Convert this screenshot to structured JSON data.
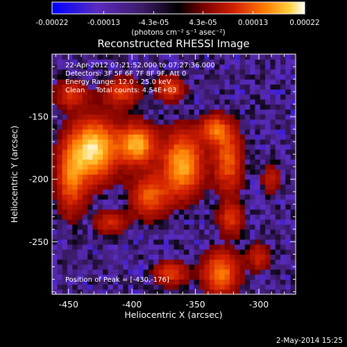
{
  "colorbar": {
    "tick_labels": [
      "-0.00022",
      "-0.00013",
      "-4.3e-05",
      "4.3e-05",
      "0.00013",
      "0.00022"
    ],
    "tick_values": [
      -0.00022,
      -0.00013,
      -4.3e-05,
      4.3e-05,
      0.00013,
      0.00022
    ],
    "range": [
      -0.00022,
      0.00022
    ],
    "units_label": "(photons cm⁻² s⁻¹ asec⁻²)",
    "colormap": [
      "#0000ff",
      "#5a2cc0",
      "#3b1a66",
      "#000000",
      "#7a0000",
      "#d22000",
      "#ff7a00",
      "#ffd040",
      "#ffffff"
    ]
  },
  "image": {
    "title": "Reconstructed RHESSI Image",
    "info_lines": [
      "22-Apr-2012 07:21:52.000 to 07:27:36.000",
      "Detectors: 3F 5F 6F 7F 8F 9F, Att 0",
      "Energy Range: 12.0 - 25.0 keV",
      "Clean     Total counts: 4.54E+03"
    ],
    "peak_text": "Position of Peak = [-430,-176]"
  },
  "chart_data": {
    "type": "heatmap",
    "title": "Reconstructed RHESSI Image",
    "xlabel": "Heliocentric X (arcsec)",
    "ylabel": "Heliocentric Y (arcsec)",
    "xlim": [
      -463,
      -271
    ],
    "ylim": [
      -292,
      -100
    ],
    "x_ticks": [
      -450,
      -400,
      -350,
      -300
    ],
    "x_tick_labels": [
      "-450",
      "-400",
      "-350",
      "-300"
    ],
    "y_ticks": [
      -150,
      -200,
      -250
    ],
    "y_tick_labels": [
      "-150",
      "-200",
      "-250"
    ],
    "grid": false,
    "peak": [
      -430,
      -176
    ],
    "emission_sources": [
      {
        "x": -430,
        "y": -176,
        "sx": 13,
        "sy": 17,
        "amp": 1.0
      },
      {
        "x": -448,
        "y": -200,
        "sx": 8,
        "sy": 20,
        "amp": 0.6
      },
      {
        "x": -396,
        "y": -172,
        "sx": 10,
        "sy": 11,
        "amp": 0.85
      },
      {
        "x": -386,
        "y": -213,
        "sx": 10,
        "sy": 12,
        "amp": 0.6
      },
      {
        "x": -360,
        "y": -188,
        "sx": 11,
        "sy": 18,
        "amp": 0.85
      },
      {
        "x": -335,
        "y": -160,
        "sx": 8,
        "sy": 8,
        "amp": 0.6
      },
      {
        "x": -324,
        "y": -185,
        "sx": 8,
        "sy": 18,
        "amp": 0.6
      },
      {
        "x": -322,
        "y": -232,
        "sx": 7,
        "sy": 9,
        "amp": 0.45
      },
      {
        "x": -330,
        "y": -275,
        "sx": 10,
        "sy": 12,
        "amp": 0.7
      },
      {
        "x": -370,
        "y": -275,
        "sx": 9,
        "sy": 7,
        "amp": 0.5
      },
      {
        "x": -417,
        "y": -234,
        "sx": 9,
        "sy": 7,
        "amp": 0.4
      },
      {
        "x": -408,
        "y": -130,
        "sx": 10,
        "sy": 8,
        "amp": 0.5
      },
      {
        "x": -370,
        "y": -127,
        "sx": 8,
        "sy": 7,
        "amp": 0.5
      },
      {
        "x": -448,
        "y": -132,
        "sx": 9,
        "sy": 8,
        "amp": 0.45
      },
      {
        "x": -290,
        "y": -200,
        "sx": 5,
        "sy": 9,
        "amp": 0.35
      },
      {
        "x": -300,
        "y": -262,
        "sx": 6,
        "sy": 8,
        "amp": 0.4
      }
    ]
  },
  "footer": {
    "timestamp": "2-May-2014 15:25"
  }
}
